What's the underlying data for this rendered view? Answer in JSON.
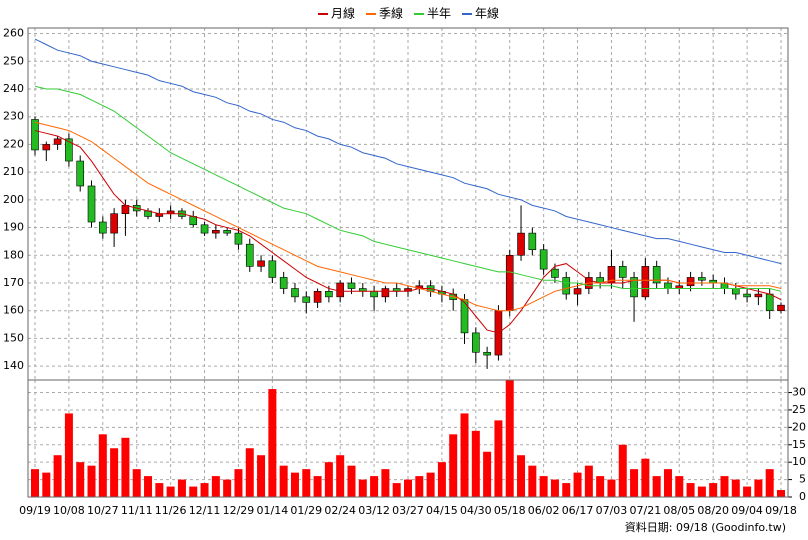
{
  "chart_data": [
    {
      "type": "candlestick",
      "categories": [
        "09/19",
        null,
        null,
        "10/08",
        null,
        null,
        "10/27",
        null,
        null,
        "11/11",
        null,
        null,
        "11/26",
        null,
        null,
        "12/11",
        null,
        null,
        "12/29",
        null,
        null,
        "01/14",
        null,
        null,
        "01/29",
        null,
        null,
        "02/24",
        null,
        null,
        "03/12",
        null,
        null,
        "03/27",
        null,
        null,
        "04/15",
        null,
        null,
        "04/30",
        null,
        null,
        "05/18",
        null,
        null,
        "06/02",
        null,
        null,
        "06/17",
        null,
        null,
        "07/03",
        null,
        null,
        "07/21",
        null,
        null,
        "08/05",
        null,
        null,
        "08/20",
        null,
        null,
        "09/04",
        null,
        null,
        "09/18"
      ],
      "open": [
        229,
        218,
        220,
        222,
        214,
        205,
        192,
        188,
        195,
        198,
        196,
        194,
        195,
        196,
        194,
        191,
        188,
        189,
        188,
        184,
        176,
        178,
        172,
        168,
        165,
        163,
        167,
        165,
        170,
        168,
        167,
        165,
        168,
        167,
        168,
        169,
        167,
        166,
        164,
        152,
        145,
        144,
        160,
        180,
        188,
        182,
        175,
        172,
        166,
        168,
        172,
        170,
        176,
        172,
        165,
        176,
        170,
        168,
        169,
        172,
        171,
        170,
        168,
        166,
        165,
        166,
        160
      ],
      "high": [
        230,
        221,
        223,
        224,
        216,
        207,
        194,
        197,
        200,
        200,
        197,
        197,
        198,
        197,
        196,
        192,
        191,
        190,
        190,
        186,
        180,
        180,
        174,
        170,
        167,
        168,
        169,
        171,
        172,
        170,
        169,
        169,
        170,
        169,
        171,
        171,
        169,
        168,
        166,
        154,
        147,
        162,
        182,
        198,
        190,
        184,
        177,
        174,
        170,
        174,
        174,
        182,
        178,
        174,
        179,
        178,
        172,
        171,
        174,
        174,
        173,
        172,
        170,
        168,
        168,
        168,
        163
      ],
      "low": [
        216,
        214,
        218,
        212,
        203,
        190,
        186,
        183,
        187,
        194,
        193,
        192,
        193,
        193,
        190,
        187,
        186,
        187,
        182,
        174,
        174,
        170,
        166,
        163,
        159,
        161,
        163,
        163,
        166,
        165,
        160,
        163,
        165,
        165,
        166,
        165,
        163,
        160,
        148,
        141,
        139,
        142,
        158,
        178,
        180,
        173,
        170,
        164,
        162,
        166,
        168,
        168,
        168,
        156,
        164,
        168,
        166,
        166,
        167,
        169,
        168,
        166,
        164,
        163,
        162,
        157,
        159
      ],
      "close": [
        218,
        220,
        222,
        214,
        205,
        192,
        188,
        195,
        198,
        196,
        194,
        195,
        196,
        194,
        191,
        188,
        189,
        188,
        184,
        176,
        178,
        172,
        168,
        165,
        163,
        167,
        165,
        170,
        168,
        167,
        165,
        168,
        167,
        168,
        169,
        167,
        166,
        164,
        152,
        145,
        144,
        160,
        180,
        188,
        182,
        175,
        172,
        166,
        168,
        172,
        170,
        176,
        172,
        165,
        176,
        170,
        168,
        169,
        172,
        171,
        170,
        168,
        166,
        165,
        166,
        160,
        162
      ],
      "up_color": "#dd0000",
      "down_color": "#22bb22",
      "series": [
        {
          "name": "月線",
          "color": "#cc0000",
          "values": [
            225,
            224,
            223,
            221,
            219,
            214,
            208,
            202,
            198,
            197,
            196,
            195,
            195,
            195,
            194,
            193,
            191,
            190,
            189,
            187,
            184,
            181,
            178,
            175,
            172,
            170,
            168,
            167,
            167,
            167,
            167,
            167,
            167,
            167,
            168,
            168,
            167,
            166,
            163,
            158,
            153,
            152,
            155,
            160,
            166,
            172,
            176,
            177,
            174,
            171,
            170,
            170,
            170,
            171,
            171,
            171,
            171,
            170,
            170,
            170,
            170,
            170,
            169,
            168,
            167,
            166,
            164
          ]
        },
        {
          "name": "季線",
          "color": "#ff6600",
          "values": [
            228,
            227,
            226,
            225,
            223,
            221,
            218,
            215,
            212,
            209,
            206,
            204,
            202,
            200,
            198,
            196,
            194,
            192,
            190,
            188,
            186,
            184,
            182,
            180,
            178,
            176,
            175,
            174,
            173,
            172,
            171,
            170,
            170,
            169,
            168,
            167,
            166,
            165,
            164,
            162,
            161,
            160,
            160,
            161,
            163,
            165,
            167,
            168,
            169,
            170,
            170,
            171,
            171,
            171,
            171,
            171,
            171,
            170,
            170,
            170,
            170,
            170,
            169,
            169,
            169,
            169,
            168
          ]
        },
        {
          "name": "半年",
          "color": "#33cc33",
          "values": [
            241,
            240,
            240,
            239,
            238,
            236,
            234,
            232,
            229,
            226,
            223,
            220,
            217,
            215,
            213,
            211,
            209,
            207,
            205,
            203,
            201,
            199,
            197,
            196,
            195,
            193,
            191,
            189,
            188,
            187,
            185,
            184,
            183,
            182,
            181,
            180,
            179,
            178,
            177,
            176,
            175,
            174,
            174,
            173,
            172,
            171,
            171,
            170,
            170,
            169,
            169,
            169,
            168,
            168,
            168,
            168,
            168,
            168,
            168,
            168,
            168,
            168,
            168,
            168,
            168,
            168,
            167
          ]
        },
        {
          "name": "年線",
          "color": "#3366cc",
          "values": [
            258,
            256,
            254,
            253,
            252,
            250,
            249,
            248,
            247,
            246,
            245,
            243,
            242,
            241,
            239,
            238,
            237,
            235,
            234,
            232,
            231,
            229,
            228,
            226,
            225,
            223,
            222,
            220,
            219,
            217,
            216,
            215,
            213,
            212,
            211,
            210,
            209,
            208,
            206,
            205,
            204,
            202,
            201,
            200,
            198,
            197,
            196,
            194,
            193,
            192,
            191,
            190,
            189,
            188,
            187,
            186,
            186,
            185,
            184,
            183,
            182,
            181,
            181,
            180,
            179,
            178,
            177
          ]
        }
      ],
      "ylim": [
        135,
        262
      ],
      "yticks": [
        140,
        150,
        160,
        170,
        180,
        190,
        200,
        210,
        220,
        230,
        240,
        250,
        260
      ],
      "grid": true
    },
    {
      "type": "bar",
      "color": "#ff0000",
      "values": [
        8,
        7,
        12,
        24,
        10,
        9,
        18,
        14,
        17,
        8,
        6,
        4,
        3,
        5,
        3,
        4,
        6,
        5,
        8,
        14,
        12,
        31,
        9,
        7,
        8,
        6,
        10,
        12,
        9,
        5,
        6,
        8,
        4,
        5,
        6,
        7,
        10,
        18,
        24,
        19,
        13,
        22,
        35,
        12,
        9,
        6,
        5,
        4,
        7,
        9,
        6,
        5,
        15,
        8,
        11,
        6,
        8,
        6,
        4,
        3,
        4,
        6,
        5,
        3,
        5,
        8,
        2
      ],
      "ylim": [
        0,
        33.6
      ],
      "yticks": [
        0,
        5,
        10,
        15,
        20,
        25,
        30
      ],
      "grid": true,
      "note": "資料日期: 09/18 (Goodinfo.tw)"
    }
  ]
}
